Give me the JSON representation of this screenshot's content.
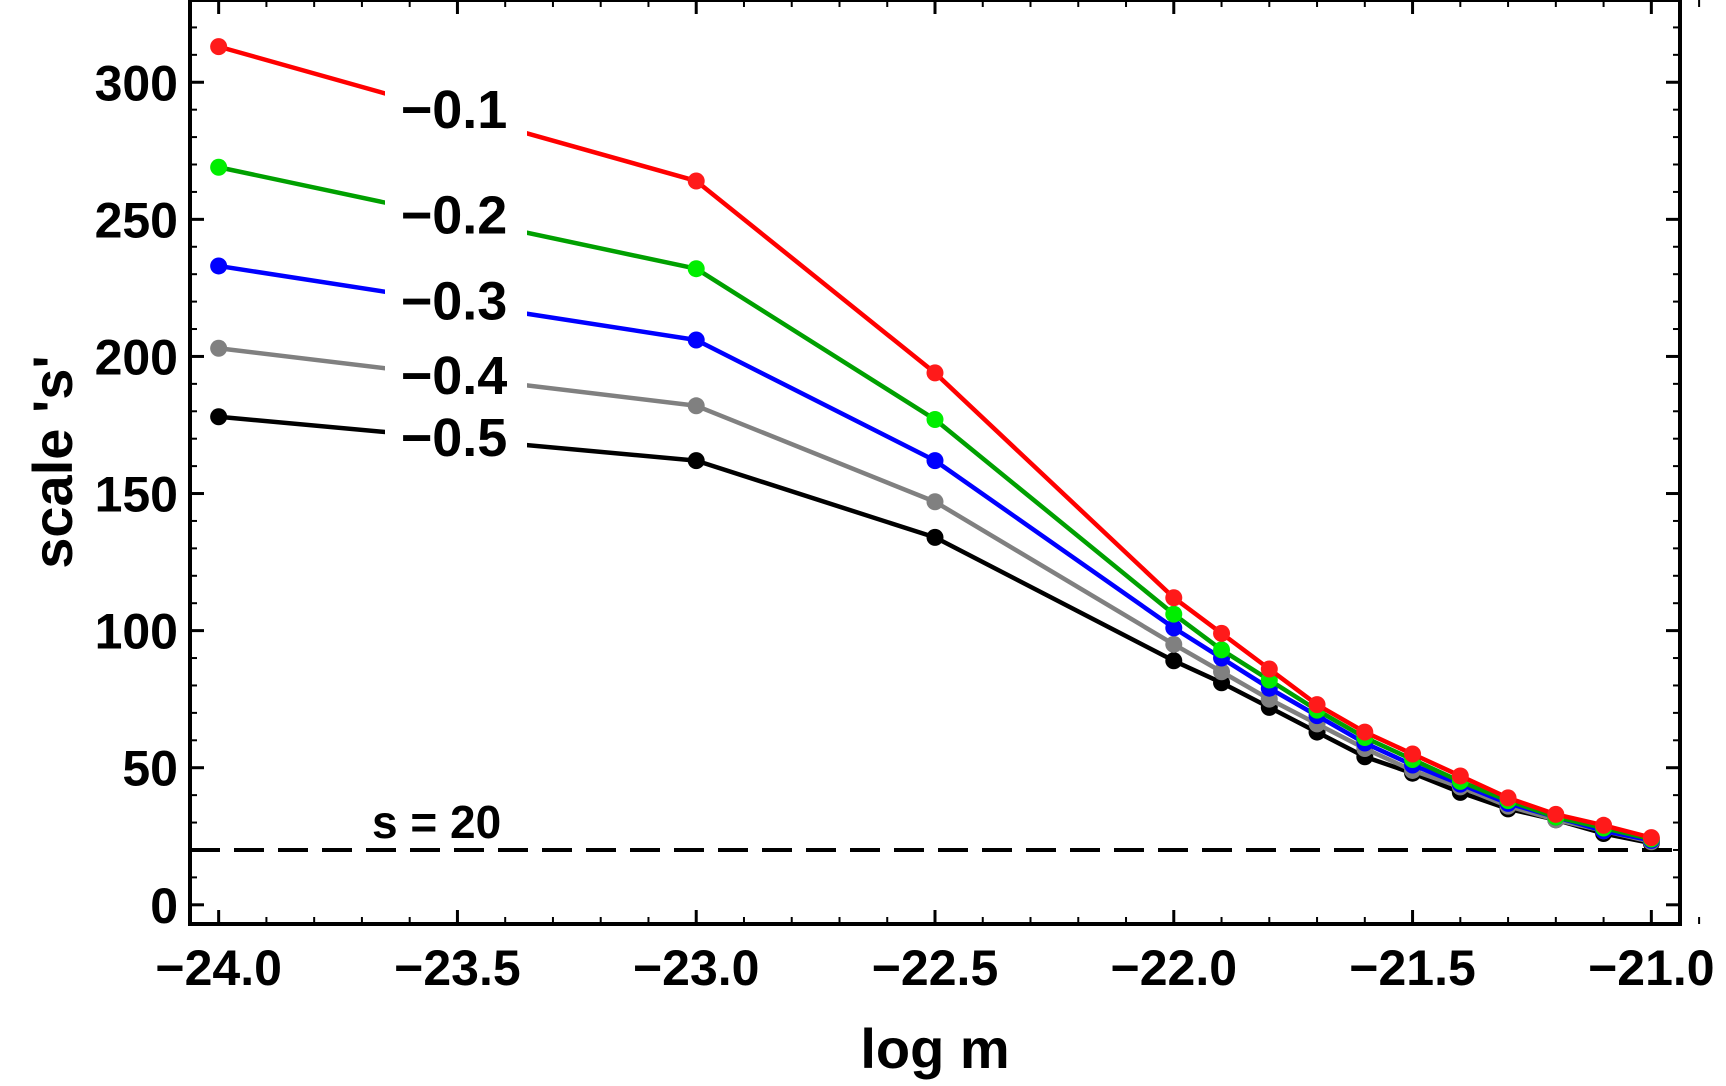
{
  "chart_data": {
    "type": "line",
    "title": "",
    "xlabel": "log m",
    "ylabel": "scale 's'",
    "xlim": [
      -24.06,
      -20.94
    ],
    "ylim": [
      -7,
      330
    ],
    "x_ticks": [
      -24.0,
      -23.5,
      -23.0,
      -22.5,
      -22.0,
      -21.5,
      -21.0
    ],
    "x_tick_labels": [
      "−24.0",
      "−23.5",
      "−23.0",
      "−22.5",
      "−22.0",
      "−21.5",
      "−21.0"
    ],
    "y_ticks": [
      0,
      50,
      100,
      150,
      200,
      250,
      300
    ],
    "y_tick_labels": [
      "0",
      "50",
      "100",
      "150",
      "200",
      "250",
      "300"
    ],
    "grid": false,
    "frame": true,
    "x": [
      -24.0,
      -23.0,
      -22.5,
      -22.0,
      -21.9,
      -21.8,
      -21.7,
      -21.6,
      -21.5,
      -21.4,
      -21.3,
      -21.2,
      -21.1,
      -21.0
    ],
    "series": [
      {
        "name": "−0.1",
        "line_color": "#ff0000",
        "marker_color": "#ff1a1a",
        "values": [
          313,
          264,
          194,
          112,
          99,
          86,
          73,
          63,
          55,
          47,
          39,
          33,
          29,
          24.5
        ]
      },
      {
        "name": "−0.2",
        "line_color": "#00a000",
        "marker_color": "#00ee00",
        "values": [
          269,
          232,
          177,
          106,
          93,
          82,
          71,
          61,
          53,
          45,
          38,
          32,
          28,
          24
        ]
      },
      {
        "name": "−0.3",
        "line_color": "#0000ff",
        "marker_color": "#0000ff",
        "values": [
          233,
          206,
          162,
          101,
          90,
          79,
          69,
          59,
          51,
          44,
          37,
          32,
          27,
          23.5
        ]
      },
      {
        "name": "−0.4",
        "line_color": "#808080",
        "marker_color": "#808080",
        "values": [
          203,
          182,
          147,
          95,
          85,
          75,
          66,
          57,
          49,
          43,
          36,
          31,
          27,
          23
        ]
      },
      {
        "name": "−0.5",
        "line_color": "#000000",
        "marker_color": "#000000",
        "values": [
          178,
          162,
          134,
          89,
          81,
          72,
          63,
          54,
          48,
          41,
          35,
          31,
          26,
          22.5
        ]
      }
    ],
    "reference_line": {
      "y": 20,
      "style": "dashed",
      "color": "#000000",
      "label": "s = 20"
    }
  }
}
